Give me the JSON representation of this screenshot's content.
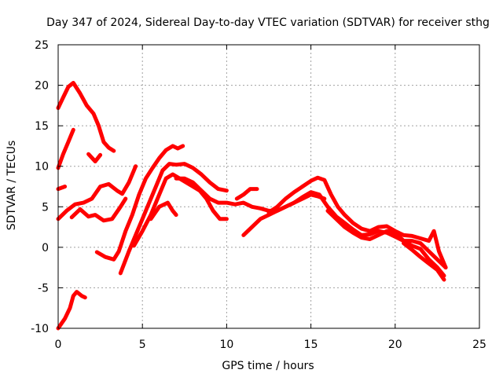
{
  "chart_data": {
    "type": "line",
    "title": "Day 347 of 2024, Sidereal Day-to-day VTEC variation (SDTVAR) for receiver sthg",
    "xlabel": "GPS time / hours",
    "ylabel": "SDTVAR / TECUs",
    "xlim": [
      0,
      25
    ],
    "ylim": [
      -10,
      25
    ],
    "xticks": [
      0,
      5,
      10,
      15,
      20,
      25
    ],
    "yticks": [
      -10,
      -5,
      0,
      5,
      10,
      15,
      20,
      25
    ],
    "xtick_labels": [
      "0",
      "5",
      "10",
      "15",
      "20",
      "25"
    ],
    "ytick_labels": [
      "-10",
      "-5",
      "0",
      "5",
      "10",
      "15",
      "20",
      "25"
    ],
    "grid": true,
    "color": "#ff0000",
    "series": [
      {
        "name": "track-1",
        "points": [
          [
            0,
            17.2
          ],
          [
            0.3,
            18.5
          ],
          [
            0.6,
            19.8
          ],
          [
            0.9,
            20.3
          ],
          [
            1.3,
            19
          ],
          [
            1.7,
            17.5
          ],
          [
            2.1,
            16.5
          ],
          [
            2.4,
            15
          ],
          [
            2.7,
            13
          ],
          [
            3.0,
            12.3
          ],
          [
            3.3,
            11.9
          ]
        ]
      },
      {
        "name": "track-2",
        "points": [
          [
            1.8,
            11.5
          ],
          [
            2.2,
            10.6
          ],
          [
            2.5,
            11.4
          ]
        ]
      },
      {
        "name": "track-3",
        "points": [
          [
            0,
            9.8
          ],
          [
            0.3,
            11.5
          ],
          [
            0.6,
            13
          ],
          [
            0.9,
            14.5
          ]
        ]
      },
      {
        "name": "track-4",
        "points": [
          [
            0,
            7.2
          ],
          [
            0.4,
            7.5
          ]
        ]
      },
      {
        "name": "track-5",
        "points": [
          [
            0,
            3.5
          ],
          [
            0.5,
            4.5
          ],
          [
            1.0,
            5.3
          ],
          [
            1.5,
            5.5
          ],
          [
            2.0,
            6
          ],
          [
            2.5,
            7.5
          ],
          [
            3.0,
            7.8
          ],
          [
            3.5,
            7
          ],
          [
            3.8,
            6.6
          ],
          [
            4.2,
            8
          ],
          [
            4.6,
            10
          ]
        ]
      },
      {
        "name": "track-6",
        "points": [
          [
            0.8,
            3.7
          ],
          [
            1.3,
            4.7
          ],
          [
            1.8,
            3.8
          ],
          [
            2.2,
            4
          ],
          [
            2.7,
            3.3
          ],
          [
            3.2,
            3.5
          ],
          [
            3.7,
            5
          ],
          [
            4.0,
            6
          ]
        ]
      },
      {
        "name": "track-7",
        "points": [
          [
            2.3,
            -0.6
          ],
          [
            2.8,
            -1.2
          ],
          [
            3.3,
            -1.5
          ],
          [
            3.6,
            -0.5
          ],
          [
            4.0,
            2
          ],
          [
            4.4,
            4
          ],
          [
            4.8,
            6.5
          ],
          [
            5.2,
            8.5
          ],
          [
            5.6,
            9.8
          ],
          [
            6.0,
            11
          ],
          [
            6.4,
            12
          ],
          [
            6.8,
            12.5
          ],
          [
            7.1,
            12.2
          ],
          [
            7.4,
            12.5
          ]
        ]
      },
      {
        "name": "track-8",
        "points": [
          [
            3.7,
            -3.2
          ],
          [
            4.2,
            -0.5
          ],
          [
            4.6,
            1.5
          ],
          [
            5.0,
            3.5
          ],
          [
            5.4,
            5.5
          ],
          [
            5.8,
            7.5
          ],
          [
            6.2,
            9.5
          ],
          [
            6.6,
            10.3
          ],
          [
            7.0,
            10.2
          ],
          [
            7.5,
            10.3
          ],
          [
            8.0,
            9.8
          ],
          [
            8.5,
            9
          ],
          [
            9.0,
            8
          ],
          [
            9.5,
            7.2
          ],
          [
            10.0,
            7
          ]
        ]
      },
      {
        "name": "track-9",
        "points": [
          [
            4.5,
            0.2
          ],
          [
            5.0,
            2
          ],
          [
            5.5,
            4
          ],
          [
            6.0,
            6.5
          ],
          [
            6.4,
            8.5
          ],
          [
            6.8,
            9
          ],
          [
            7.2,
            8.5
          ],
          [
            7.6,
            8
          ],
          [
            8.0,
            7.5
          ],
          [
            8.4,
            7
          ],
          [
            8.8,
            6
          ],
          [
            9.2,
            4.5
          ],
          [
            9.6,
            3.5
          ],
          [
            10.0,
            3.5
          ]
        ]
      },
      {
        "name": "track-10",
        "points": [
          [
            5.5,
            3.5
          ],
          [
            6.0,
            5
          ],
          [
            6.5,
            5.5
          ],
          [
            6.8,
            4.5
          ],
          [
            7.0,
            4
          ]
        ]
      },
      {
        "name": "track-11",
        "points": [
          [
            7.0,
            8.5
          ],
          [
            7.5,
            8.5
          ],
          [
            8.0,
            8
          ],
          [
            8.5,
            7
          ],
          [
            9.0,
            6
          ],
          [
            9.5,
            5.5
          ],
          [
            10.0,
            5.5
          ],
          [
            10.5,
            5.3
          ],
          [
            11.0,
            5.5
          ],
          [
            11.5,
            5
          ],
          [
            12.0,
            4.8
          ],
          [
            12.5,
            4.5
          ],
          [
            13.0,
            4.5
          ],
          [
            13.5,
            5
          ],
          [
            14.0,
            5.5
          ],
          [
            14.5,
            6
          ],
          [
            15.0,
            6.5
          ],
          [
            15.4,
            6.3
          ],
          [
            15.8,
            6
          ]
        ]
      },
      {
        "name": "track-12",
        "points": [
          [
            10.6,
            6
          ],
          [
            11.0,
            6.5
          ],
          [
            11.4,
            7.2
          ],
          [
            11.8,
            7.2
          ]
        ]
      },
      {
        "name": "track-13",
        "points": [
          [
            11.0,
            1.5
          ],
          [
            11.5,
            2.5
          ],
          [
            12.0,
            3.5
          ],
          [
            12.5,
            4
          ],
          [
            13.0,
            4.5
          ],
          [
            13.5,
            5
          ],
          [
            14.0,
            5.5
          ],
          [
            14.5,
            6.2
          ],
          [
            15.0,
            6.8
          ],
          [
            15.5,
            6.5
          ],
          [
            16.0,
            5
          ],
          [
            16.5,
            3.8
          ],
          [
            17.0,
            3
          ],
          [
            17.5,
            2.2
          ],
          [
            18.0,
            1.5
          ],
          [
            18.5,
            1.6
          ],
          [
            19.0,
            2
          ],
          [
            19.5,
            1.8
          ],
          [
            20.0,
            1.3
          ],
          [
            20.5,
            0.8
          ],
          [
            21.0,
            0.8
          ],
          [
            21.5,
            0.5
          ],
          [
            22.0,
            -0.5
          ],
          [
            22.5,
            -1.5
          ],
          [
            23.0,
            -2.5
          ]
        ]
      },
      {
        "name": "track-14",
        "points": [
          [
            12.5,
            4.3
          ],
          [
            13.0,
            5
          ],
          [
            13.5,
            6
          ],
          [
            14.0,
            6.8
          ],
          [
            14.5,
            7.5
          ],
          [
            15.0,
            8.2
          ],
          [
            15.4,
            8.6
          ],
          [
            15.8,
            8.3
          ],
          [
            16.2,
            6.5
          ],
          [
            16.6,
            5
          ],
          [
            17.0,
            4
          ],
          [
            17.5,
            3
          ],
          [
            18.0,
            2.3
          ],
          [
            18.5,
            2
          ],
          [
            19.0,
            2.5
          ],
          [
            19.5,
            2.6
          ],
          [
            20.0,
            2
          ],
          [
            20.5,
            1.5
          ],
          [
            21.0,
            1.4
          ],
          [
            21.5,
            1.1
          ],
          [
            22.0,
            0.8
          ],
          [
            22.3,
            2
          ],
          [
            22.6,
            -0.5
          ],
          [
            23.0,
            -2.5
          ]
        ]
      },
      {
        "name": "track-15",
        "points": [
          [
            16.0,
            4.5
          ],
          [
            16.5,
            3.5
          ],
          [
            17.0,
            2.5
          ],
          [
            17.5,
            1.8
          ],
          [
            18.0,
            1.2
          ],
          [
            18.5,
            1
          ],
          [
            19.0,
            1.5
          ],
          [
            19.5,
            2
          ],
          [
            20.0,
            1.8
          ],
          [
            20.5,
            0.8
          ],
          [
            21.0,
            0.2
          ],
          [
            21.5,
            -0.2
          ],
          [
            22.0,
            -1.5
          ],
          [
            22.5,
            -2.5
          ],
          [
            22.9,
            -3.5
          ]
        ]
      },
      {
        "name": "track-16",
        "points": [
          [
            20.5,
            0.5
          ],
          [
            21.0,
            -0.3
          ],
          [
            21.5,
            -1.2
          ],
          [
            22.0,
            -2
          ],
          [
            22.5,
            -2.8
          ],
          [
            22.9,
            -4
          ]
        ]
      },
      {
        "name": "track-17",
        "points": [
          [
            0,
            -10
          ],
          [
            0.4,
            -8.8
          ],
          [
            0.7,
            -7.5
          ],
          [
            0.9,
            -6
          ],
          [
            1.1,
            -5.5
          ],
          [
            1.4,
            -6
          ],
          [
            1.6,
            -6.2
          ]
        ]
      }
    ]
  }
}
